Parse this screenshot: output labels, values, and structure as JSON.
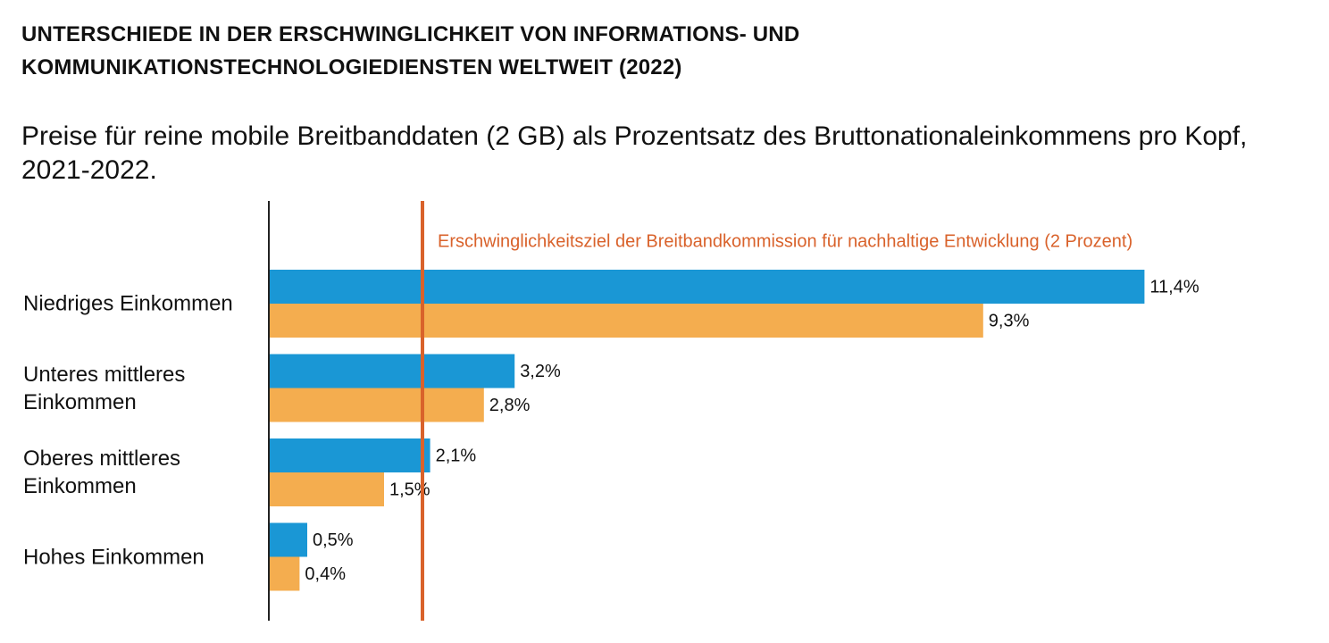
{
  "chart_data": {
    "type": "bar",
    "orientation": "horizontal",
    "title": "UNTERSCHIEDE IN DER ERSCHWINGLICHKEIT VON INFORMATIONS- UND KOMMUNIKATIONSTECHNOLOGIEDIENSTEN WELTWEIT (2022)",
    "subtitle": "Preise für reine mobile Breitbanddaten (2 GB) als Prozentsatz des Bruttonationaleinkommens pro Kopf, 2021-2022.",
    "categories": [
      "Niedriges Einkommen",
      "Unteres mittleres Einkommen",
      "Oberes mittleres Einkommen",
      "Hohes Einkommen"
    ],
    "series": [
      {
        "color": "#1a97d5",
        "values": [
          11.4,
          3.2,
          2.1,
          0.5
        ],
        "value_labels": [
          "11,4%",
          "3,2%",
          "2,1%",
          "0,5%"
        ]
      },
      {
        "color": "#f4ad4f",
        "values": [
          9.3,
          2.8,
          1.5,
          0.4
        ],
        "value_labels": [
          "9,3%",
          "2,8%",
          "1,5%",
          "0,4%"
        ]
      }
    ],
    "xlim": [
      0,
      13.5
    ],
    "reference_line": {
      "value": 2,
      "label": "Erschwinglichkeitsziel der Breitbandkommission für nachhaltige Entwicklung (2 Prozent)",
      "color": "#d9622b"
    }
  }
}
